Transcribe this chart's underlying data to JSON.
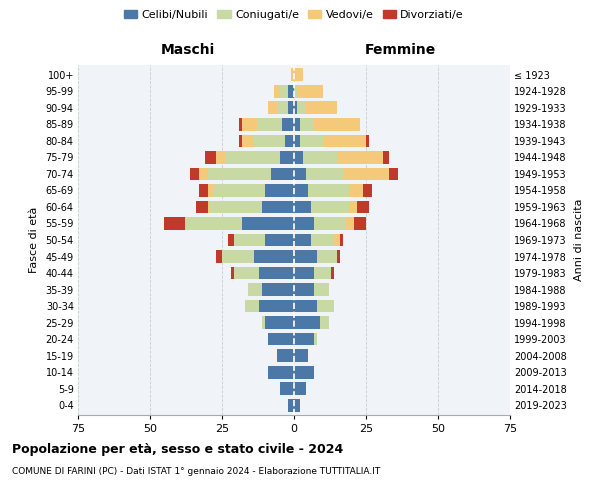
{
  "age_groups": [
    "0-4",
    "5-9",
    "10-14",
    "15-19",
    "20-24",
    "25-29",
    "30-34",
    "35-39",
    "40-44",
    "45-49",
    "50-54",
    "55-59",
    "60-64",
    "65-69",
    "70-74",
    "75-79",
    "80-84",
    "85-89",
    "90-94",
    "95-99",
    "100+"
  ],
  "birth_years": [
    "2019-2023",
    "2014-2018",
    "2009-2013",
    "2004-2008",
    "1999-2003",
    "1994-1998",
    "1989-1993",
    "1984-1988",
    "1979-1983",
    "1974-1978",
    "1969-1973",
    "1964-1968",
    "1959-1963",
    "1954-1958",
    "1949-1953",
    "1944-1948",
    "1939-1943",
    "1934-1938",
    "1929-1933",
    "1924-1928",
    "≤ 1923"
  ],
  "colors": {
    "celibi": "#4c78a8",
    "coniugati": "#c8d9a4",
    "vedovi": "#f5c97a",
    "divorziati": "#c0392b"
  },
  "male": {
    "celibi": [
      2,
      5,
      9,
      6,
      9,
      10,
      12,
      11,
      12,
      14,
      10,
      18,
      11,
      10,
      8,
      5,
      3,
      4,
      2,
      2,
      0
    ],
    "coniugati": [
      0,
      0,
      0,
      0,
      0,
      1,
      5,
      5,
      9,
      11,
      11,
      20,
      18,
      18,
      22,
      19,
      11,
      9,
      4,
      3,
      0
    ],
    "vedovi": [
      0,
      0,
      0,
      0,
      0,
      0,
      0,
      0,
      0,
      0,
      0,
      0,
      1,
      2,
      3,
      3,
      4,
      5,
      3,
      2,
      1
    ],
    "divorziati": [
      0,
      0,
      0,
      0,
      0,
      0,
      0,
      0,
      1,
      2,
      2,
      7,
      4,
      3,
      3,
      4,
      1,
      1,
      0,
      0,
      0
    ]
  },
  "female": {
    "nubili": [
      2,
      4,
      7,
      5,
      7,
      9,
      8,
      7,
      7,
      8,
      6,
      7,
      6,
      5,
      4,
      3,
      2,
      2,
      1,
      0,
      0
    ],
    "coniugati": [
      0,
      0,
      0,
      0,
      1,
      3,
      6,
      5,
      6,
      7,
      8,
      11,
      13,
      14,
      13,
      12,
      8,
      5,
      3,
      1,
      0
    ],
    "vedovi": [
      0,
      0,
      0,
      0,
      0,
      0,
      0,
      0,
      0,
      0,
      2,
      3,
      3,
      5,
      16,
      16,
      15,
      16,
      11,
      9,
      3
    ],
    "divorziati": [
      0,
      0,
      0,
      0,
      0,
      0,
      0,
      0,
      1,
      1,
      1,
      4,
      4,
      3,
      3,
      2,
      1,
      0,
      0,
      0,
      0
    ]
  },
  "xlim": 75,
  "title": "Popolazione per età, sesso e stato civile - 2024",
  "subtitle": "COMUNE DI FARINI (PC) - Dati ISTAT 1° gennaio 2024 - Elaborazione TUTTITALIA.IT",
  "ylabel_left": "Fasce di età",
  "ylabel_right": "Anni di nascita",
  "label_maschi": "Maschi",
  "label_femmine": "Femmine",
  "legend_labels": [
    "Celibi/Nubili",
    "Coniugati/e",
    "Vedovi/e",
    "Divorziati/e"
  ],
  "bg_color": "#f0f4f8",
  "fig_bg": "#ffffff"
}
